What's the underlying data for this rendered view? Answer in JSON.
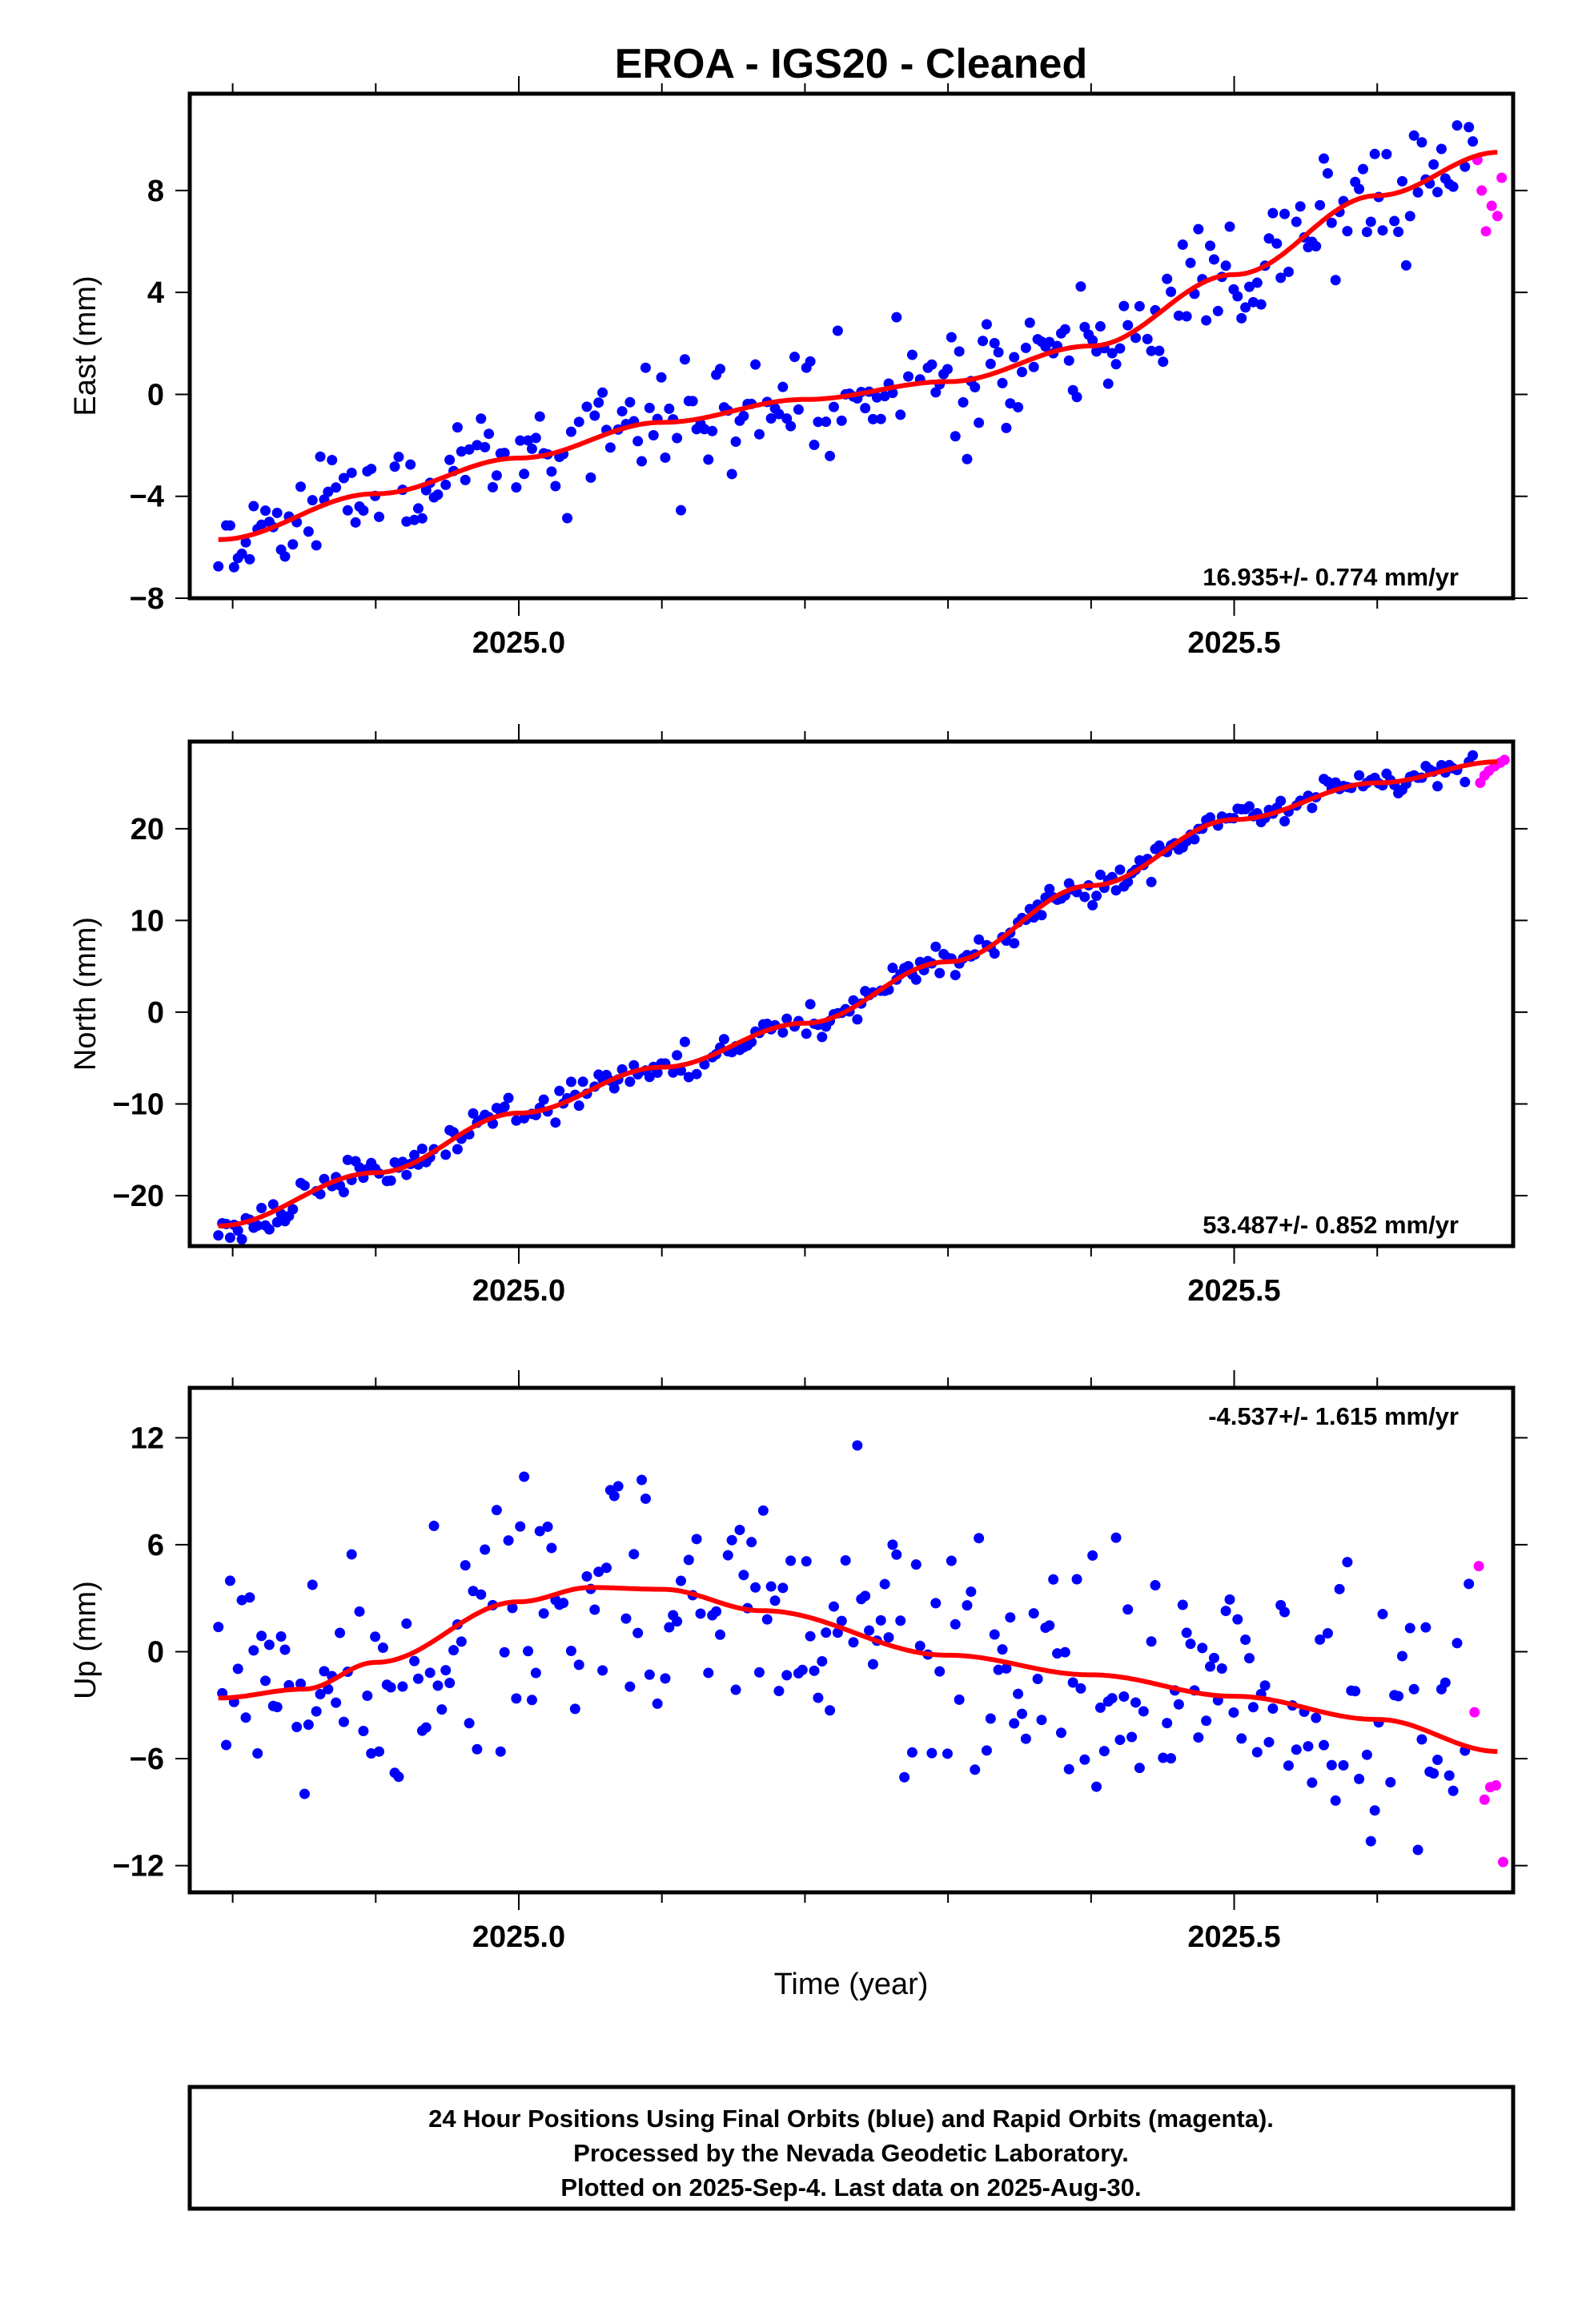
{
  "title": "EROA  - IGS20 - Cleaned",
  "x_axis_label": "Time (year)",
  "footer": {
    "line1": "24 Hour Positions Using Final Orbits (blue) and Rapid Orbits (magenta).",
    "line2": "Processed by the Nevada Geodetic Laboratory.",
    "line3": "Plotted on 2025-Sep-4. Last data on 2025-Aug-30."
  },
  "colors": {
    "final": "#0000ff",
    "rapid": "#ff00ff",
    "fit": "#ff0000",
    "frame": "#000000"
  },
  "chart_data": [
    {
      "type": "scatter",
      "panel": "east",
      "ylabel": "East (mm)",
      "rate_label": "16.935+/- 0.774 mm/yr",
      "xlim": [
        2024.77,
        2025.695
      ],
      "ylim": [
        -8,
        11.8
      ],
      "xticks": [
        2025.0,
        2025.5
      ],
      "xtick_labels": [
        "2025.0",
        "2025.5"
      ],
      "yticks": [
        -8,
        -4,
        0,
        4,
        8
      ],
      "ytick_labels": [
        "−8",
        "−4",
        "0",
        "4",
        "8"
      ],
      "final_orbits": {
        "t0": 2024.79,
        "dt": 0.00274,
        "noise": 1.1,
        "seed": 11
      },
      "fit": {
        "x": [
          2024.79,
          2024.9,
          2025.0,
          2025.1,
          2025.2,
          2025.3,
          2025.4,
          2025.5,
          2025.6,
          2025.685
        ],
        "y": [
          -5.7,
          -3.9,
          -2.5,
          -1.1,
          -0.2,
          0.5,
          1.9,
          4.7,
          7.8,
          9.5
        ]
      },
      "rapid_orbits": {
        "x": [
          2025.67,
          2025.673,
          2025.676,
          2025.68,
          2025.684,
          2025.687
        ],
        "y": [
          9.2,
          8.0,
          6.4,
          7.4,
          7.0,
          8.5
        ]
      }
    },
    {
      "type": "scatter",
      "panel": "north",
      "ylabel": "North (mm)",
      "rate_label": "53.487+/- 0.852 mm/yr",
      "xlim": [
        2024.77,
        2025.695
      ],
      "ylim": [
        -25.5,
        29.5
      ],
      "xticks": [
        2025.0,
        2025.5
      ],
      "xtick_labels": [
        "2025.0",
        "2025.5"
      ],
      "yticks": [
        -20,
        -10,
        0,
        10,
        20
      ],
      "ytick_labels": [
        "−20",
        "−10",
        "0",
        "10",
        "20"
      ],
      "final_orbits": {
        "t0": 2024.79,
        "dt": 0.00274,
        "noise": 0.8,
        "seed": 23
      },
      "fit": {
        "x": [
          2024.79,
          2024.9,
          2025.0,
          2025.1,
          2025.2,
          2025.3,
          2025.4,
          2025.5,
          2025.6,
          2025.685
        ],
        "y": [
          -23.3,
          -17.5,
          -11.0,
          -6.0,
          -1.2,
          5.5,
          13.8,
          21.0,
          25.0,
          27.3
        ]
      },
      "rapid_orbits": {
        "x": [
          2025.672,
          2025.675,
          2025.678,
          2025.682,
          2025.686,
          2025.689
        ],
        "y": [
          25.0,
          25.8,
          26.3,
          26.8,
          27.2,
          27.5
        ]
      }
    },
    {
      "type": "scatter",
      "panel": "up",
      "ylabel": "Up (mm)",
      "rate_label": "-4.537+/- 1.615 mm/yr",
      "xlim": [
        2024.77,
        2025.695
      ],
      "ylim": [
        -13.5,
        14.8
      ],
      "xticks": [
        2025.0,
        2025.5
      ],
      "xtick_labels": [
        "2025.0",
        "2025.5"
      ],
      "yticks": [
        -12,
        -6,
        0,
        6,
        12
      ],
      "ytick_labels": [
        "−12",
        "−6",
        "0",
        "6",
        "12"
      ],
      "final_orbits": {
        "t0": 2024.79,
        "dt": 0.00274,
        "noise": 3.6,
        "seed": 47
      },
      "fit": {
        "x": [
          2024.79,
          2024.85,
          2024.9,
          2025.0,
          2025.05,
          2025.1,
          2025.17,
          2025.3,
          2025.4,
          2025.5,
          2025.6,
          2025.685
        ],
        "y": [
          -2.6,
          -2.1,
          -0.6,
          2.8,
          3.6,
          3.5,
          2.3,
          -0.2,
          -1.3,
          -2.5,
          -3.8,
          -5.6
        ]
      },
      "rapid_orbits": {
        "x": [
          2025.668,
          2025.671,
          2025.675,
          2025.679,
          2025.683,
          2025.688
        ],
        "y": [
          -3.4,
          4.8,
          -8.3,
          -7.6,
          -7.5,
          -11.8
        ]
      }
    }
  ]
}
